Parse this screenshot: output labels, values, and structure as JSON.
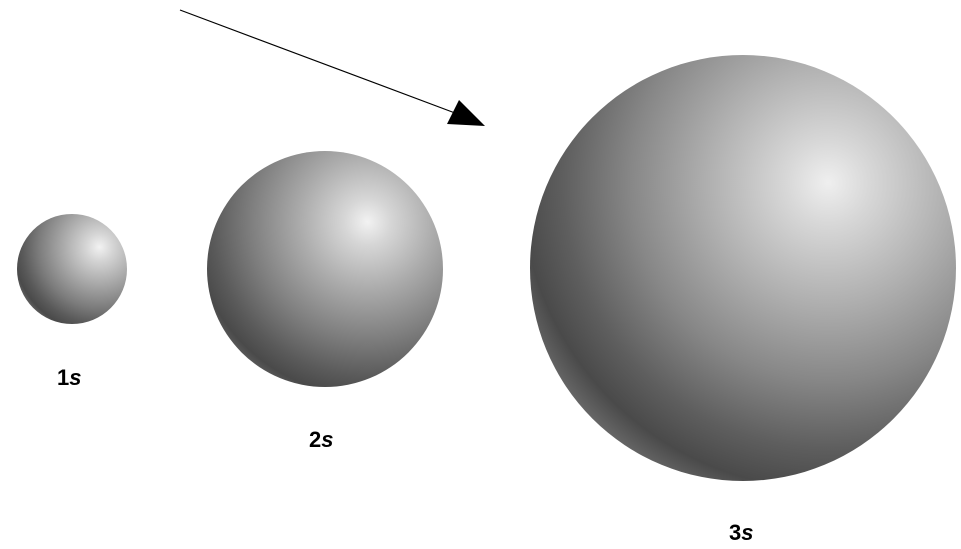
{
  "diagram": {
    "orbitals": [
      {
        "id": "1s",
        "number": "1",
        "letter": "s"
      },
      {
        "id": "2s",
        "number": "2",
        "letter": "s"
      },
      {
        "id": "3s",
        "number": "3",
        "letter": "s"
      }
    ],
    "colors": {
      "background": "#ffffff",
      "highlight": "#f2f2f2",
      "mid": "#8c8c8c",
      "shadow": "#4a4a4a",
      "rim": "#6e6e6e",
      "arrow": "#000000",
      "label": "#000000"
    }
  }
}
